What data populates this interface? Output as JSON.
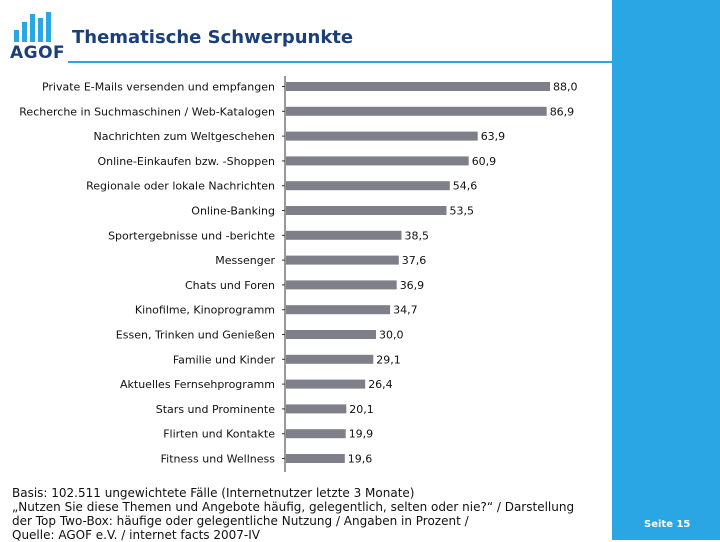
{
  "header": {
    "logo_text": "AGOF",
    "title": "Thematische Schwerpunkte"
  },
  "colors": {
    "accent": "#29a6e3",
    "brand": "#1b3f7a",
    "bar": "#7f7f8a"
  },
  "chart_data": {
    "type": "bar",
    "orientation": "horizontal",
    "title": "Thematische Schwerpunkte",
    "xlabel": "",
    "ylabel": "",
    "xlim": [
      0,
      100
    ],
    "categories": [
      "Private E-Mails versenden und empfangen",
      "Recherche in Suchmaschinen / Web-Katalogen",
      "Nachrichten zum Weltgeschehen",
      "Online-Einkaufen bzw. -Shoppen",
      "Regionale oder lokale Nachrichten",
      "Online-Banking",
      "Sportergebnisse und -berichte",
      "Messenger",
      "Chats und Foren",
      "Kinofilme, Kinoprogramm",
      "Essen, Trinken und Genießen",
      "Familie und Kinder",
      "Aktuelles Fernsehprogramm",
      "Stars und Prominente",
      "Flirten und Kontakte",
      "Fitness und Wellness"
    ],
    "values": [
      88.0,
      86.9,
      63.9,
      60.9,
      54.6,
      53.5,
      38.5,
      37.6,
      36.9,
      34.7,
      30.0,
      29.1,
      26.4,
      20.1,
      19.9,
      19.6
    ],
    "value_labels": [
      "88,0",
      "86,9",
      "63,9",
      "60,9",
      "54,6",
      "53,5",
      "38,5",
      "37,6",
      "36,9",
      "34,7",
      "30,0",
      "29,1",
      "26,4",
      "20,1",
      "19,9",
      "19,6"
    ]
  },
  "footnote": {
    "line1": "Basis: 102.511 ungewichtete Fälle (Internetnutzer letzte 3 Monate)",
    "line2": "„Nutzen Sie diese Themen und Angebote häufig, gelegentlich, selten oder nie?“ / Darstellung",
    "line3": "der Top Two-Box: häufige oder gelegentliche Nutzung / Angaben in Prozent /",
    "line4": "Quelle: AGOF e.V. / internet facts 2007-IV"
  },
  "page": {
    "label": "Seite 15"
  }
}
